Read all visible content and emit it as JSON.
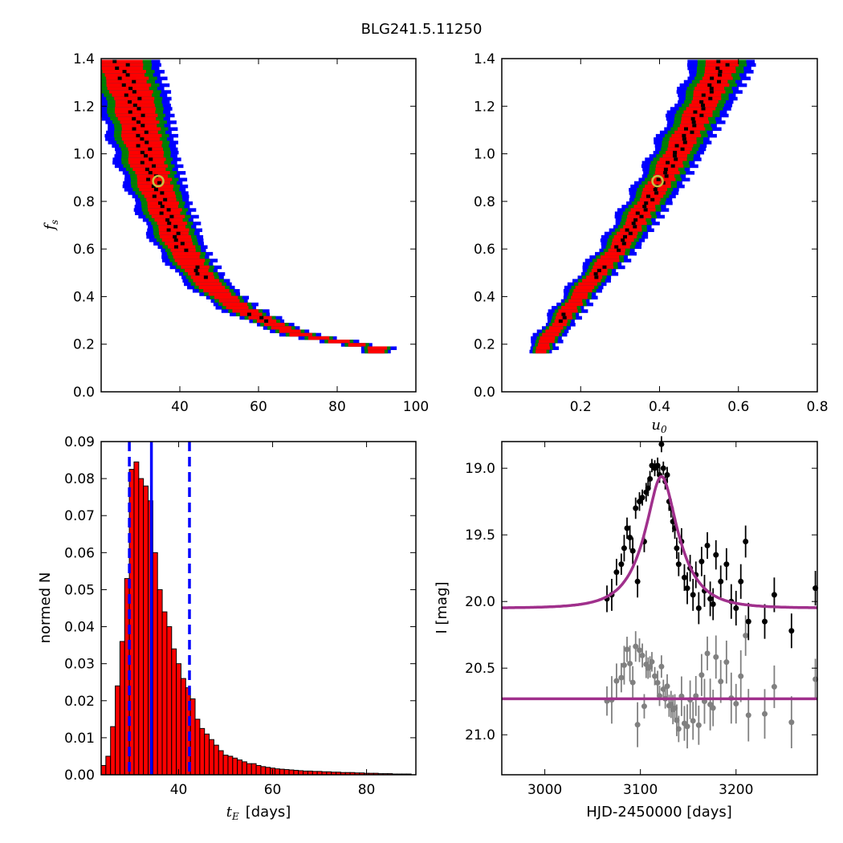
{
  "figure": {
    "title": "BLG241.5.11250"
  },
  "colors": {
    "sigma1": "#ff0000",
    "sigma2": "#008000",
    "sigma3": "#0000ff",
    "core": "#000000",
    "best_fit_marker": "#c8c040",
    "model_curve": "#a0308c",
    "residual_points": "#808080",
    "hist_fill": "#ff0000",
    "hist_lines": "#0000ff"
  },
  "chart_data": [
    {
      "type": "heatmap",
      "panel": "top-left",
      "xlabel": "",
      "ylabel": "f",
      "ylabel_sub": "s",
      "xlim": [
        20,
        100
      ],
      "ylim": [
        0.0,
        1.4
      ],
      "xticks": [
        40,
        60,
        80,
        100
      ],
      "yticks": [
        0.0,
        0.2,
        0.4,
        0.6,
        0.8,
        1.0,
        1.2,
        1.4
      ],
      "ridge": [
        [
          25,
          1.38
        ],
        [
          28,
          1.25
        ],
        [
          30,
          1.1
        ],
        [
          32,
          0.96
        ],
        [
          35,
          0.82
        ],
        [
          40,
          0.62
        ],
        [
          45,
          0.5
        ],
        [
          50,
          0.42
        ],
        [
          55,
          0.36
        ],
        [
          60,
          0.32
        ],
        [
          65,
          0.28
        ],
        [
          70,
          0.25
        ],
        [
          80,
          0.22
        ],
        [
          90,
          0.19
        ]
      ],
      "best_fit": {
        "x": 34.5,
        "y": 0.885
      },
      "grid": false,
      "legend": "none"
    },
    {
      "type": "heatmap",
      "panel": "top-right",
      "xlabel": "u",
      "xlabel_sub": "0",
      "ylabel": "",
      "xlim": [
        0.0,
        0.8
      ],
      "ylim": [
        0.0,
        1.4
      ],
      "xticks": [
        0.2,
        0.4,
        0.6,
        0.8
      ],
      "yticks": [
        0.0,
        0.2,
        0.4,
        0.6,
        0.8,
        1.0,
        1.2,
        1.4
      ],
      "ridge": [
        [
          0.1,
          0.19
        ],
        [
          0.2,
          0.42
        ],
        [
          0.3,
          0.62
        ],
        [
          0.4,
          0.88
        ],
        [
          0.5,
          1.18
        ],
        [
          0.56,
          1.38
        ]
      ],
      "best_fit": {
        "x": 0.395,
        "y": 0.885
      },
      "grid": false,
      "legend": "none"
    },
    {
      "type": "bar",
      "panel": "bottom-left",
      "xlabel": "t",
      "xlabel_sub": "E",
      "xlabel_unit": "[days]",
      "ylabel": "normed N",
      "xlim": [
        23.5,
        90.5
      ],
      "ylim": [
        0.0,
        0.09
      ],
      "xticks": [
        40,
        60,
        80
      ],
      "yticks": [
        0.0,
        0.01,
        0.02,
        0.03,
        0.04,
        0.05,
        0.06,
        0.07,
        0.08,
        0.09
      ],
      "bin_width": 1,
      "bin_start": 24,
      "values": [
        0.0025,
        0.005,
        0.013,
        0.024,
        0.036,
        0.053,
        0.0825,
        0.0845,
        0.08,
        0.078,
        0.074,
        0.06,
        0.05,
        0.044,
        0.04,
        0.034,
        0.03,
        0.026,
        0.0235,
        0.0205,
        0.015,
        0.0125,
        0.011,
        0.0095,
        0.008,
        0.0065,
        0.0053,
        0.005,
        0.0045,
        0.004,
        0.0035,
        0.003,
        0.003,
        0.0025,
        0.0022,
        0.002,
        0.0018,
        0.0016,
        0.0015,
        0.0014,
        0.0013,
        0.0012,
        0.0011,
        0.001,
        0.001,
        0.0009,
        0.0009,
        0.0008,
        0.0008,
        0.0007,
        0.0007,
        0.0006,
        0.0006,
        0.0006,
        0.0005,
        0.0005,
        0.0004,
        0.0004,
        0.0004,
        0.0003,
        0.0003,
        0.0003,
        0.0002,
        0.0002,
        0.0002,
        0.0002
      ],
      "vlines": [
        {
          "x": 29.5,
          "style": "dashed"
        },
        {
          "x": 34.2,
          "style": "solid"
        },
        {
          "x": 42.3,
          "style": "dashed"
        }
      ],
      "grid": false,
      "legend": "none"
    },
    {
      "type": "scatter",
      "panel": "bottom-right",
      "xlabel": "HJD-2450000 [days]",
      "ylabel": "I [mag]",
      "xlim": [
        2955,
        3285
      ],
      "ylim": [
        21.3,
        18.8
      ],
      "xticks": [
        3000,
        3100,
        3200
      ],
      "yticks": [
        19.0,
        19.5,
        20.0,
        20.5,
        21.0
      ],
      "ytick_labels": [
        "19.0",
        "19.5",
        "20.0",
        "20.5",
        "21.0"
      ],
      "model": {
        "t0": 3122,
        "tE": 34.2,
        "u0": 0.395,
        "fs": 0.885,
        "baseline": 20.05
      },
      "residual_offset": 20.73,
      "points": [
        {
          "x": 3065,
          "y": 19.98,
          "e": 0.1
        },
        {
          "x": 3070,
          "y": 19.95,
          "e": 0.12
        },
        {
          "x": 3075,
          "y": 19.78,
          "e": 0.1
        },
        {
          "x": 3080,
          "y": 19.72,
          "e": 0.08
        },
        {
          "x": 3083,
          "y": 19.6,
          "e": 0.1
        },
        {
          "x": 3086,
          "y": 19.45,
          "e": 0.08
        },
        {
          "x": 3089,
          "y": 19.52,
          "e": 0.09
        },
        {
          "x": 3092,
          "y": 19.62,
          "e": 0.1
        },
        {
          "x": 3095,
          "y": 19.3,
          "e": 0.08
        },
        {
          "x": 3097,
          "y": 19.85,
          "e": 0.12
        },
        {
          "x": 3099,
          "y": 19.25,
          "e": 0.07
        },
        {
          "x": 3102,
          "y": 19.22,
          "e": 0.06
        },
        {
          "x": 3104,
          "y": 19.55,
          "e": 0.08
        },
        {
          "x": 3106,
          "y": 19.18,
          "e": 0.07
        },
        {
          "x": 3108,
          "y": 19.15,
          "e": 0.06
        },
        {
          "x": 3110,
          "y": 19.08,
          "e": 0.06
        },
        {
          "x": 3112,
          "y": 18.98,
          "e": 0.05
        },
        {
          "x": 3115,
          "y": 19.0,
          "e": 0.06
        },
        {
          "x": 3118,
          "y": 18.98,
          "e": 0.06
        },
        {
          "x": 3120,
          "y": 19.05,
          "e": 0.06
        },
        {
          "x": 3122,
          "y": 18.82,
          "e": 0.06
        },
        {
          "x": 3124,
          "y": 19.0,
          "e": 0.05
        },
        {
          "x": 3126,
          "y": 19.1,
          "e": 0.06
        },
        {
          "x": 3128,
          "y": 19.05,
          "e": 0.06
        },
        {
          "x": 3130,
          "y": 19.25,
          "e": 0.07
        },
        {
          "x": 3132,
          "y": 19.3,
          "e": 0.07
        },
        {
          "x": 3134,
          "y": 19.4,
          "e": 0.08
        },
        {
          "x": 3136,
          "y": 19.45,
          "e": 0.08
        },
        {
          "x": 3138,
          "y": 19.6,
          "e": 0.08
        },
        {
          "x": 3140,
          "y": 19.72,
          "e": 0.09
        },
        {
          "x": 3143,
          "y": 19.55,
          "e": 0.1
        },
        {
          "x": 3146,
          "y": 19.82,
          "e": 0.1
        },
        {
          "x": 3149,
          "y": 19.9,
          "e": 0.12
        },
        {
          "x": 3152,
          "y": 19.75,
          "e": 0.1
        },
        {
          "x": 3155,
          "y": 19.95,
          "e": 0.12
        },
        {
          "x": 3158,
          "y": 19.8,
          "e": 0.1
        },
        {
          "x": 3161,
          "y": 20.05,
          "e": 0.12
        },
        {
          "x": 3164,
          "y": 19.7,
          "e": 0.11
        },
        {
          "x": 3167,
          "y": 19.92,
          "e": 0.12
        },
        {
          "x": 3170,
          "y": 19.58,
          "e": 0.1
        },
        {
          "x": 3173,
          "y": 19.98,
          "e": 0.13
        },
        {
          "x": 3176,
          "y": 20.02,
          "e": 0.12
        },
        {
          "x": 3179,
          "y": 19.65,
          "e": 0.11
        },
        {
          "x": 3184,
          "y": 19.85,
          "e": 0.12
        },
        {
          "x": 3190,
          "y": 19.72,
          "e": 0.12
        },
        {
          "x": 3195,
          "y": 20.0,
          "e": 0.13
        },
        {
          "x": 3200,
          "y": 20.05,
          "e": 0.13
        },
        {
          "x": 3205,
          "y": 19.85,
          "e": 0.13
        },
        {
          "x": 3210,
          "y": 19.55,
          "e": 0.12
        },
        {
          "x": 3213,
          "y": 20.15,
          "e": 0.14
        },
        {
          "x": 3230,
          "y": 20.15,
          "e": 0.13
        },
        {
          "x": 3240,
          "y": 19.95,
          "e": 0.13
        },
        {
          "x": 3258,
          "y": 20.22,
          "e": 0.13
        },
        {
          "x": 3283,
          "y": 19.9,
          "e": 0.13
        }
      ],
      "grid": false,
      "legend": "none"
    }
  ]
}
